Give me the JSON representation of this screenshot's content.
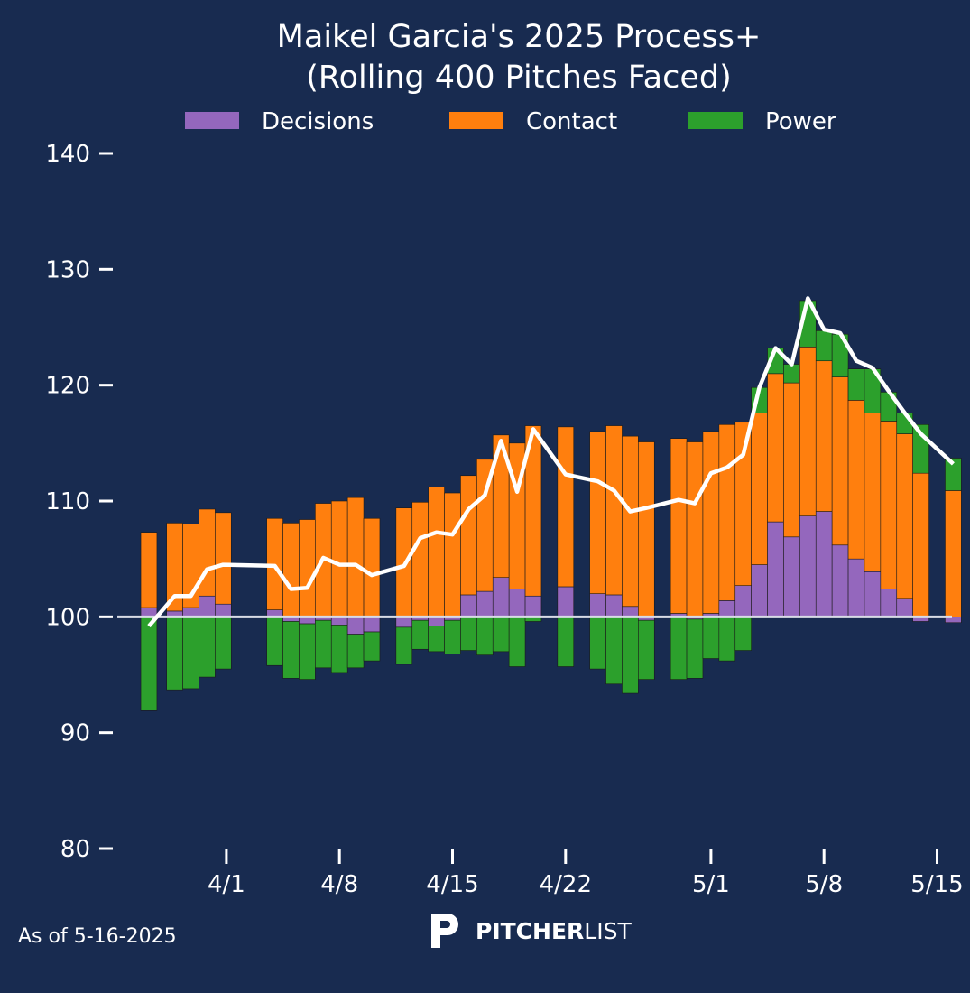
{
  "chart_data": {
    "type": "bar",
    "title_line1": "Maikel Garcia's 2025 Process+",
    "title_line2": "(Rolling 400 Pitches Faced)",
    "xlabel": "",
    "ylabel": "",
    "ylim": [
      80,
      140
    ],
    "baseline": 100,
    "y_ticks": [
      80,
      90,
      100,
      110,
      120,
      130,
      140
    ],
    "x_ticks": [
      {
        "label": "4/1",
        "day": 1
      },
      {
        "label": "4/8",
        "day": 8
      },
      {
        "label": "4/15",
        "day": 15
      },
      {
        "label": "4/22",
        "day": 22
      },
      {
        "label": "5/1",
        "day": 31
      },
      {
        "label": "5/8",
        "day": 38
      },
      {
        "label": "5/15",
        "day": 45
      }
    ],
    "legend": [
      {
        "name": "Decisions",
        "color": "#9467bd"
      },
      {
        "name": "Contact",
        "color": "#ff7f0e"
      },
      {
        "name": "Power",
        "color": "#2ca02c"
      }
    ],
    "legend_position": "top-center",
    "line_color": "#ffffff",
    "baseline_color": "#d8dce6",
    "series_note": "Stacked components per game date (day = days since 3/31). Process+ line = overall value.",
    "points": [
      {
        "day": -4.8,
        "decisions": 0.8,
        "contact": 6.5,
        "power": -8.1,
        "process": 99.2
      },
      {
        "day": -3.2,
        "decisions": 0.5,
        "contact": 7.6,
        "power": -6.3,
        "process": 101.8
      },
      {
        "day": -2.2,
        "decisions": 0.8,
        "contact": 7.2,
        "power": -6.2,
        "process": 101.8
      },
      {
        "day": -1.2,
        "decisions": 1.8,
        "contact": 7.5,
        "power": -5.2,
        "process": 104.1
      },
      {
        "day": -0.2,
        "decisions": 1.1,
        "contact": 7.9,
        "power": -4.5,
        "process": 104.5
      },
      {
        "day": 3.0,
        "decisions": 0.6,
        "contact": 7.9,
        "power": -4.2,
        "process": 104.4
      },
      {
        "day": 4.0,
        "decisions": -0.4,
        "contact": 8.1,
        "power": -4.9,
        "process": 102.4
      },
      {
        "day": 5.0,
        "decisions": -0.6,
        "contact": 8.4,
        "power": -4.8,
        "process": 102.5
      },
      {
        "day": 6.0,
        "decisions": -0.3,
        "contact": 9.8,
        "power": -4.1,
        "process": 105.1
      },
      {
        "day": 7.0,
        "decisions": -0.7,
        "contact": 10.0,
        "power": -4.1,
        "process": 104.5
      },
      {
        "day": 8.0,
        "decisions": -1.5,
        "contact": 10.3,
        "power": -2.9,
        "process": 104.5
      },
      {
        "day": 9.0,
        "decisions": -1.3,
        "contact": 8.5,
        "power": -2.5,
        "process": 103.6
      },
      {
        "day": 11.0,
        "decisions": -0.9,
        "contact": 9.4,
        "power": -3.2,
        "process": 104.4
      },
      {
        "day": 12.0,
        "decisions": -0.3,
        "contact": 9.9,
        "power": -2.5,
        "process": 106.8
      },
      {
        "day": 13.0,
        "decisions": -0.8,
        "contact": 11.2,
        "power": -2.2,
        "process": 107.3
      },
      {
        "day": 14.0,
        "decisions": -0.3,
        "contact": 10.7,
        "power": -2.9,
        "process": 107.1
      },
      {
        "day": 15.0,
        "decisions": 1.9,
        "contact": 10.3,
        "power": -2.9,
        "process": 109.3
      },
      {
        "day": 16.0,
        "decisions": 2.2,
        "contact": 11.4,
        "power": -3.3,
        "process": 110.5
      },
      {
        "day": 17.0,
        "decisions": 3.4,
        "contact": 12.3,
        "power": -3.0,
        "process": 115.2
      },
      {
        "day": 18.0,
        "decisions": 2.4,
        "contact": 12.6,
        "power": -4.3,
        "process": 110.8
      },
      {
        "day": 19.0,
        "decisions": 1.8,
        "contact": 14.7,
        "power": -0.4,
        "process": 116.2
      },
      {
        "day": 21.0,
        "decisions": 2.6,
        "contact": 13.8,
        "power": -4.3,
        "process": 112.3
      },
      {
        "day": 23.0,
        "decisions": 2.0,
        "contact": 14.0,
        "power": -4.5,
        "process": 111.7
      },
      {
        "day": 24.0,
        "decisions": 1.9,
        "contact": 14.6,
        "power": -5.8,
        "process": 110.9
      },
      {
        "day": 25.0,
        "decisions": 0.9,
        "contact": 14.7,
        "power": -6.6,
        "process": 109.1
      },
      {
        "day": 26.0,
        "decisions": -0.3,
        "contact": 15.1,
        "power": -5.1,
        "process": 109.4
      },
      {
        "day": 28.0,
        "decisions": 0.3,
        "contact": 15.1,
        "power": -5.4,
        "process": 110.1
      },
      {
        "day": 29.0,
        "decisions": -0.2,
        "contact": 15.1,
        "power": -5.1,
        "process": 109.8
      },
      {
        "day": 30.0,
        "decisions": 0.3,
        "contact": 15.7,
        "power": -3.6,
        "process": 112.4
      },
      {
        "day": 31.0,
        "decisions": 1.4,
        "contact": 15.2,
        "power": -3.8,
        "process": 112.9
      },
      {
        "day": 32.0,
        "decisions": 2.7,
        "contact": 14.1,
        "power": -2.9,
        "process": 114.0
      },
      {
        "day": 33.0,
        "decisions": 4.5,
        "contact": 13.1,
        "power": 2.2,
        "process": 119.8
      },
      {
        "day": 34.0,
        "decisions": 8.2,
        "contact": 12.8,
        "power": 2.2,
        "process": 123.2
      },
      {
        "day": 35.0,
        "decisions": 6.9,
        "contact": 13.3,
        "power": 1.6,
        "process": 121.8
      },
      {
        "day": 36.0,
        "decisions": 8.7,
        "contact": 14.6,
        "power": 4.0,
        "process": 127.5
      },
      {
        "day": 37.0,
        "decisions": 9.1,
        "contact": 13.0,
        "power": 2.6,
        "process": 124.8
      },
      {
        "day": 38.0,
        "decisions": 6.2,
        "contact": 14.5,
        "power": 3.7,
        "process": 124.5
      },
      {
        "day": 39.0,
        "decisions": 5.0,
        "contact": 13.7,
        "power": 2.7,
        "process": 122.1
      },
      {
        "day": 40.0,
        "decisions": 3.9,
        "contact": 13.7,
        "power": 3.8,
        "process": 121.5
      },
      {
        "day": 41.0,
        "decisions": 2.4,
        "contact": 14.5,
        "power": 2.5,
        "process": 119.5
      },
      {
        "day": 42.0,
        "decisions": 1.6,
        "contact": 14.2,
        "power": 1.8,
        "process": 117.6
      },
      {
        "day": 43.0,
        "decisions": -0.4,
        "contact": 12.4,
        "power": 4.2,
        "process": 115.8
      },
      {
        "day": 45.0,
        "decisions": -0.5,
        "contact": 10.9,
        "power": 2.8,
        "process": 113.2
      }
    ]
  },
  "footer": {
    "as_of": "As of 5-16-2025",
    "brand_bold": "PITCHER",
    "brand_light": "LIST"
  },
  "colors": {
    "background": "#182b50",
    "text": "#ffffff"
  }
}
